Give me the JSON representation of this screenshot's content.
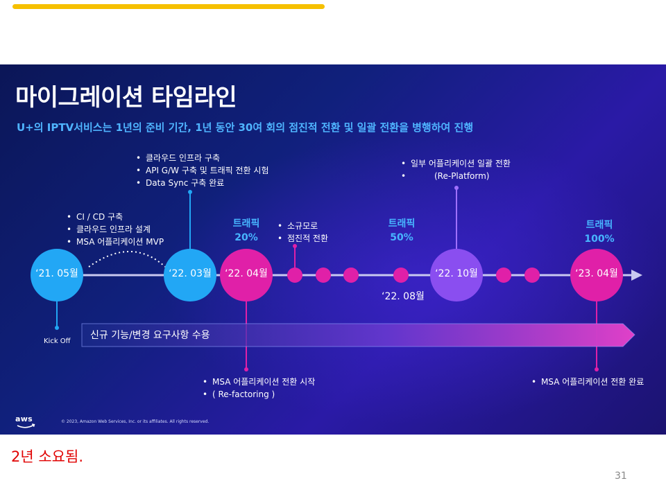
{
  "slide": {
    "title": "마이그레이션 타임라인",
    "subtitle": "U+의 IPTV서비스는 1년의 준비 기간, 1년 동안 30여 회의 점진적 전환 및 일괄 전환을 병행하여 진행",
    "colors": {
      "background": "#10207c",
      "blue_node": "#22a7f5",
      "pink_node": "#e020a8",
      "purple_node": "#8a4ef0",
      "accent": "#47b5ff"
    }
  },
  "timeline": {
    "nodes": [
      {
        "label": "‘21. 05월",
        "color": "blue"
      },
      {
        "label": "‘22. 03월",
        "color": "blue"
      },
      {
        "label": "‘22. 04월",
        "color": "pink"
      },
      {
        "label": "‘22. 10월",
        "color": "purple"
      },
      {
        "label": "‘23. 04월",
        "color": "pink"
      }
    ],
    "date_below": "‘22. 08월",
    "kickoff": "Kick Off"
  },
  "notes": {
    "n2105": [
      "CI / CD 구축",
      "클라우드 인프라 설계",
      "MSA 어플리케이션 MVP"
    ],
    "n2203": [
      "클라우드 인프라 구축",
      "API G/W 구축 및 트래픽 전환 시험",
      "Data Sync 구축 완료"
    ],
    "small": {
      "line1": "소규모로",
      "line2": "점진적 전환"
    },
    "n2210": {
      "line1": "일부 어플리케이션 일괄 전환",
      "line2": "(Re-Platform)"
    },
    "n2204_below": {
      "line1": "MSA 어플리케이션 전환 시작",
      "line2": "( Re-factoring )"
    },
    "n2304_below": "MSA 어플리케이션 전환 완료"
  },
  "traffic": [
    {
      "label": "트래픽",
      "value": "20%"
    },
    {
      "label": "트래픽",
      "value": "50%"
    },
    {
      "label": "트래픽",
      "value": "100%"
    }
  ],
  "banner": {
    "label": "신규 기능/변경 요구사항 수용"
  },
  "footer": {
    "logo_text": "aws",
    "copyright": "© 2023, Amazon Web Services, Inc. or its affiliates. All rights reserved."
  },
  "caption": "2년 소요됨.",
  "page_number": "31"
}
